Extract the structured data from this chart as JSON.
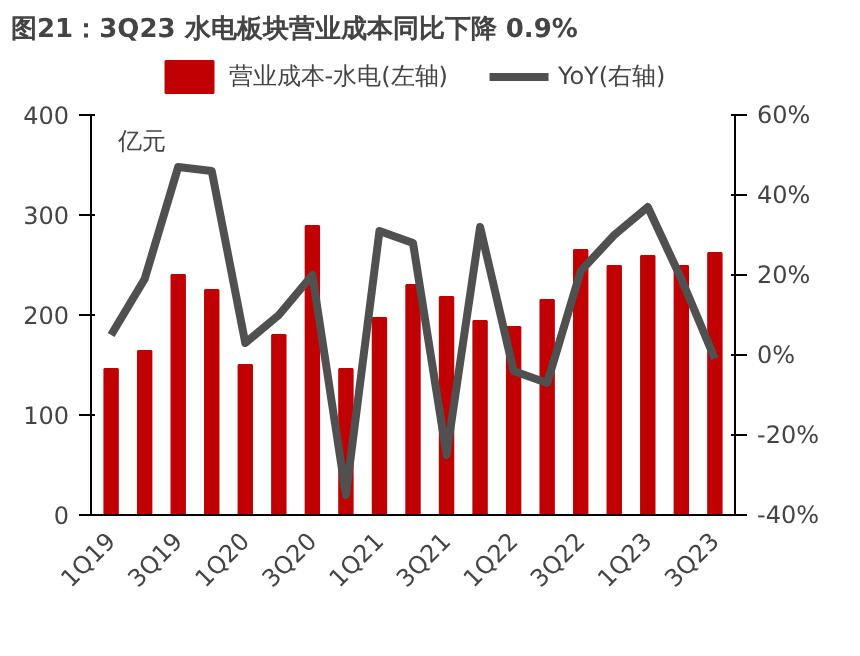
{
  "chart_data": {
    "type": "bar",
    "title": "图21：3Q23 水电板块营业成本同比下降 0.9%",
    "annotations": [
      "亿元"
    ],
    "categories": [
      "1Q19",
      null,
      "3Q19",
      null,
      "1Q20",
      null,
      "3Q20",
      null,
      "1Q21",
      null,
      "3Q21",
      null,
      "1Q22",
      null,
      "3Q22",
      null,
      "1Q23",
      null,
      "3Q23"
    ],
    "series": [
      {
        "name": "营业成本-水电(左轴)",
        "type": "bar",
        "color": "#c00000",
        "values": [
          146,
          164,
          240,
          225,
          150,
          180,
          289,
          146,
          197,
          230,
          218,
          194,
          188,
          215,
          265,
          249,
          259,
          249,
          262
        ]
      },
      {
        "name": "YoY(右轴)",
        "type": "line",
        "axis": "y2",
        "color": "#505050",
        "values": [
          5,
          19,
          47,
          46,
          3,
          10,
          20,
          -35,
          31,
          28,
          -25,
          32,
          -4,
          -7,
          21,
          30,
          37,
          19,
          -0.9
        ]
      }
    ],
    "ylim": [
      0,
      400
    ],
    "yticks": [
      0,
      100,
      200,
      300,
      400
    ],
    "y2lim": [
      -40,
      60
    ],
    "y2ticks": [
      {
        "value": -40,
        "label": "-40%"
      },
      {
        "value": -20,
        "label": "-20%"
      },
      {
        "value": 0,
        "label": "0%"
      },
      {
        "value": 20,
        "label": "20%"
      },
      {
        "value": 40,
        "label": "40%"
      },
      {
        "value": 60,
        "label": "60%"
      }
    ],
    "legend": "top",
    "grid": false
  }
}
